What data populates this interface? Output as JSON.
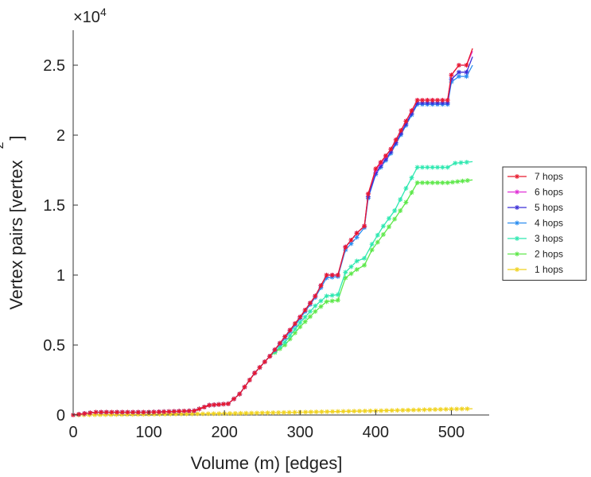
{
  "chart_data": {
    "type": "line",
    "xlabel": "Volume (m) [edges]",
    "ylabel": "Vertex pairs [vertex",
    "ylabel_superscript": "2",
    "ylabel_close": "]",
    "multiplier_base": "×10",
    "multiplier_exp": "4",
    "xlim": [
      0,
      550
    ],
    "ylim": [
      0,
      27500
    ],
    "x_ticks": [
      0,
      100,
      200,
      300,
      400,
      500
    ],
    "y_ticks": [
      0,
      5000,
      10000,
      15000,
      20000,
      25000
    ],
    "y_tick_labels": [
      "0",
      "0.5",
      "1",
      "1.5",
      "2",
      "2.5"
    ],
    "x_tick_labels": [
      "0",
      "100",
      "200",
      "300",
      "400",
      "500"
    ],
    "grid": false,
    "legend_position": "right",
    "series": [
      {
        "name": "7 hops",
        "color": "#e8192c",
        "points": [
          [
            0,
            0
          ],
          [
            30,
            200
          ],
          [
            100,
            200
          ],
          [
            160,
            300
          ],
          [
            180,
            700
          ],
          [
            205,
            800
          ],
          [
            220,
            1500
          ],
          [
            240,
            3000
          ],
          [
            260,
            4200
          ],
          [
            280,
            5600
          ],
          [
            300,
            7000
          ],
          [
            320,
            8500
          ],
          [
            335,
            10000
          ],
          [
            350,
            10000
          ],
          [
            360,
            12000
          ],
          [
            375,
            13000
          ],
          [
            385,
            13500
          ],
          [
            390,
            15800
          ],
          [
            400,
            17600
          ],
          [
            420,
            19000
          ],
          [
            440,
            21000
          ],
          [
            455,
            22500
          ],
          [
            495,
            22500
          ],
          [
            500,
            24300
          ],
          [
            510,
            25000
          ],
          [
            520,
            25000
          ],
          [
            528,
            26200
          ]
        ]
      },
      {
        "name": "6 hops",
        "color": "#e02fd6",
        "points": [
          [
            0,
            0
          ],
          [
            30,
            200
          ],
          [
            100,
            200
          ],
          [
            160,
            300
          ],
          [
            180,
            700
          ],
          [
            205,
            800
          ],
          [
            220,
            1500
          ],
          [
            240,
            3000
          ],
          [
            260,
            4200
          ],
          [
            280,
            5600
          ],
          [
            300,
            7000
          ],
          [
            320,
            8500
          ],
          [
            335,
            10000
          ],
          [
            350,
            10000
          ],
          [
            360,
            12000
          ],
          [
            375,
            13000
          ],
          [
            385,
            13500
          ],
          [
            390,
            15800
          ],
          [
            400,
            17500
          ],
          [
            420,
            19000
          ],
          [
            440,
            21000
          ],
          [
            455,
            22500
          ],
          [
            495,
            22500
          ],
          [
            500,
            24300
          ],
          [
            510,
            25000
          ],
          [
            520,
            25000
          ],
          [
            528,
            26000
          ]
        ]
      },
      {
        "name": "5 hops",
        "color": "#3b2fd6",
        "points": [
          [
            0,
            0
          ],
          [
            30,
            200
          ],
          [
            100,
            200
          ],
          [
            160,
            300
          ],
          [
            180,
            700
          ],
          [
            205,
            800
          ],
          [
            220,
            1500
          ],
          [
            240,
            3000
          ],
          [
            260,
            4200
          ],
          [
            280,
            5600
          ],
          [
            300,
            7000
          ],
          [
            320,
            8500
          ],
          [
            335,
            10000
          ],
          [
            350,
            10000
          ],
          [
            360,
            12000
          ],
          [
            375,
            13000
          ],
          [
            385,
            13500
          ],
          [
            390,
            15600
          ],
          [
            400,
            17300
          ],
          [
            420,
            18800
          ],
          [
            440,
            20800
          ],
          [
            455,
            22300
          ],
          [
            495,
            22300
          ],
          [
            500,
            24000
          ],
          [
            510,
            24500
          ],
          [
            520,
            24500
          ],
          [
            528,
            25600
          ]
        ]
      },
      {
        "name": "4 hops",
        "color": "#2a8df0",
        "points": [
          [
            0,
            0
          ],
          [
            30,
            200
          ],
          [
            100,
            200
          ],
          [
            160,
            300
          ],
          [
            180,
            700
          ],
          [
            205,
            800
          ],
          [
            220,
            1500
          ],
          [
            240,
            3000
          ],
          [
            260,
            4200
          ],
          [
            280,
            5500
          ],
          [
            300,
            6900
          ],
          [
            320,
            8400
          ],
          [
            335,
            9800
          ],
          [
            350,
            9900
          ],
          [
            360,
            11800
          ],
          [
            375,
            12700
          ],
          [
            385,
            13400
          ],
          [
            390,
            15500
          ],
          [
            400,
            17200
          ],
          [
            420,
            18700
          ],
          [
            440,
            20700
          ],
          [
            455,
            22200
          ],
          [
            495,
            22200
          ],
          [
            500,
            23800
          ],
          [
            510,
            24200
          ],
          [
            520,
            24200
          ],
          [
            528,
            25000
          ]
        ]
      },
      {
        "name": "3 hops",
        "color": "#2ee8b0",
        "points": [
          [
            0,
            0
          ],
          [
            30,
            200
          ],
          [
            100,
            200
          ],
          [
            160,
            300
          ],
          [
            180,
            700
          ],
          [
            205,
            800
          ],
          [
            220,
            1500
          ],
          [
            240,
            3000
          ],
          [
            260,
            4200
          ],
          [
            280,
            5200
          ],
          [
            300,
            6600
          ],
          [
            320,
            7800
          ],
          [
            335,
            8500
          ],
          [
            350,
            8600
          ],
          [
            360,
            10200
          ],
          [
            375,
            11000
          ],
          [
            385,
            11200
          ],
          [
            395,
            12200
          ],
          [
            410,
            13500
          ],
          [
            425,
            14600
          ],
          [
            440,
            16200
          ],
          [
            455,
            17700
          ],
          [
            495,
            17700
          ],
          [
            505,
            18000
          ],
          [
            528,
            18100
          ]
        ]
      },
      {
        "name": "2 hops",
        "color": "#5ee84a",
        "points": [
          [
            0,
            0
          ],
          [
            30,
            200
          ],
          [
            100,
            200
          ],
          [
            160,
            300
          ],
          [
            180,
            700
          ],
          [
            205,
            800
          ],
          [
            220,
            1500
          ],
          [
            240,
            3000
          ],
          [
            260,
            4200
          ],
          [
            280,
            5000
          ],
          [
            300,
            6300
          ],
          [
            320,
            7400
          ],
          [
            335,
            8100
          ],
          [
            350,
            8200
          ],
          [
            360,
            9800
          ],
          [
            375,
            10400
          ],
          [
            385,
            10700
          ],
          [
            395,
            11800
          ],
          [
            410,
            12900
          ],
          [
            425,
            14000
          ],
          [
            440,
            15200
          ],
          [
            455,
            16600
          ],
          [
            495,
            16600
          ],
          [
            528,
            16800
          ]
        ]
      },
      {
        "name": "1 hops",
        "color": "#f0d21e",
        "points": [
          [
            0,
            0
          ],
          [
            100,
            50
          ],
          [
            200,
            100
          ],
          [
            300,
            200
          ],
          [
            400,
            300
          ],
          [
            500,
            420
          ],
          [
            528,
            450
          ]
        ]
      }
    ]
  }
}
